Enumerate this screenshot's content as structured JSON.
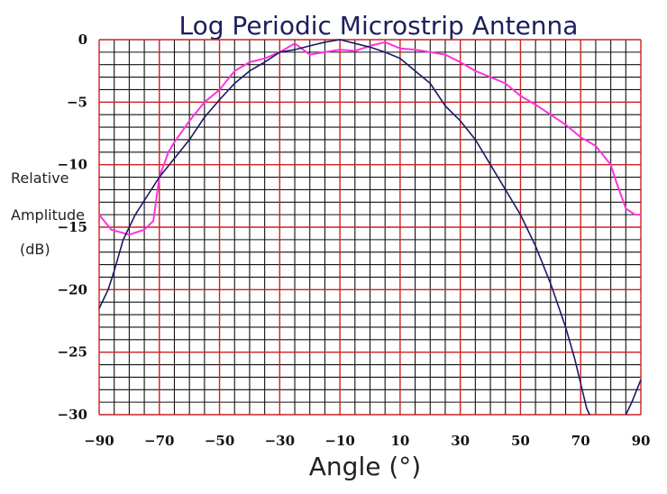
{
  "chart_data": {
    "type": "line",
    "title": "Log Periodic Microstrip Antenna",
    "xlabel": "Angle  (°)",
    "ylabel_lines": [
      "Relative",
      "Amplitude",
      "(dB)"
    ],
    "xlim": [
      -90,
      90
    ],
    "ylim": [
      -30,
      0
    ],
    "x_ticks": [
      -90,
      -70,
      -50,
      -30,
      -10,
      10,
      30,
      50,
      70,
      90
    ],
    "x_tick_labels": [
      "−90",
      "−70",
      "−50",
      "−30",
      "−10",
      "10",
      "30",
      "50",
      "70",
      "90"
    ],
    "y_ticks": [
      0,
      -5,
      -10,
      -15,
      -20,
      -25,
      -30
    ],
    "y_tick_labels": [
      "0",
      "−5",
      "−10",
      "−15",
      "−20",
      "−25",
      "−30"
    ],
    "grid": true,
    "grid_minor_step_x": 5,
    "grid_minor_step_y": 1,
    "colors": {
      "major_grid": "#cc2222",
      "minor_grid": "#111111",
      "series_pink": "#ff33dd",
      "series_navy": "#1a1a66"
    },
    "series": [
      {
        "color": "#ff33dd",
        "x": [
          -90,
          -86,
          -80,
          -75,
          -72,
          -70,
          -67,
          -65,
          -60,
          -55,
          -50,
          -45,
          -40,
          -35,
          -30,
          -25,
          -20,
          -15,
          -10,
          -5,
          0,
          5,
          10,
          15,
          20,
          25,
          30,
          35,
          40,
          45,
          50,
          55,
          60,
          65,
          70,
          75,
          80,
          82,
          85,
          88,
          90
        ],
        "y": [
          -14.0,
          -15.2,
          -15.6,
          -15.2,
          -14.5,
          -11.0,
          -9.0,
          -8.2,
          -6.5,
          -5.0,
          -4.0,
          -2.5,
          -1.8,
          -1.5,
          -1.0,
          -0.3,
          -1.2,
          -1.0,
          -0.8,
          -0.9,
          -0.5,
          -0.2,
          -0.7,
          -0.8,
          -1.0,
          -1.2,
          -1.8,
          -2.5,
          -3.0,
          -3.5,
          -4.5,
          -5.2,
          -6.0,
          -6.8,
          -7.8,
          -8.5,
          -10.0,
          -11.5,
          -13.5,
          -14.0,
          -14.0
        ]
      },
      {
        "color": "#1a1a66",
        "x": [
          -90,
          -87,
          -85,
          -82,
          -78,
          -74,
          -70,
          -65,
          -60,
          -55,
          -50,
          -45,
          -40,
          -35,
          -30,
          -25,
          -20,
          -15,
          -10,
          -5,
          0,
          5,
          10,
          15,
          20,
          25,
          30,
          35,
          40,
          45,
          50,
          55,
          60,
          65,
          68,
          70,
          72,
          73
        ],
        "y": [
          -21.5,
          -20.0,
          -18.5,
          -16.0,
          -14.0,
          -12.5,
          -11.0,
          -9.5,
          -8.0,
          -6.2,
          -4.8,
          -3.5,
          -2.5,
          -1.8,
          -1.0,
          -0.8,
          -0.5,
          -0.2,
          0.0,
          -0.3,
          -0.6,
          -1.0,
          -1.5,
          -2.5,
          -3.5,
          -5.3,
          -6.5,
          -8.0,
          -10.0,
          -12.0,
          -14.0,
          -16.5,
          -19.5,
          -23.0,
          -25.5,
          -27.5,
          -29.5,
          -30.0
        ]
      },
      {
        "color": "#1a1a66",
        "x": [
          85,
          87,
          90
        ],
        "y": [
          -30.0,
          -29.0,
          -27.2
        ]
      }
    ]
  }
}
